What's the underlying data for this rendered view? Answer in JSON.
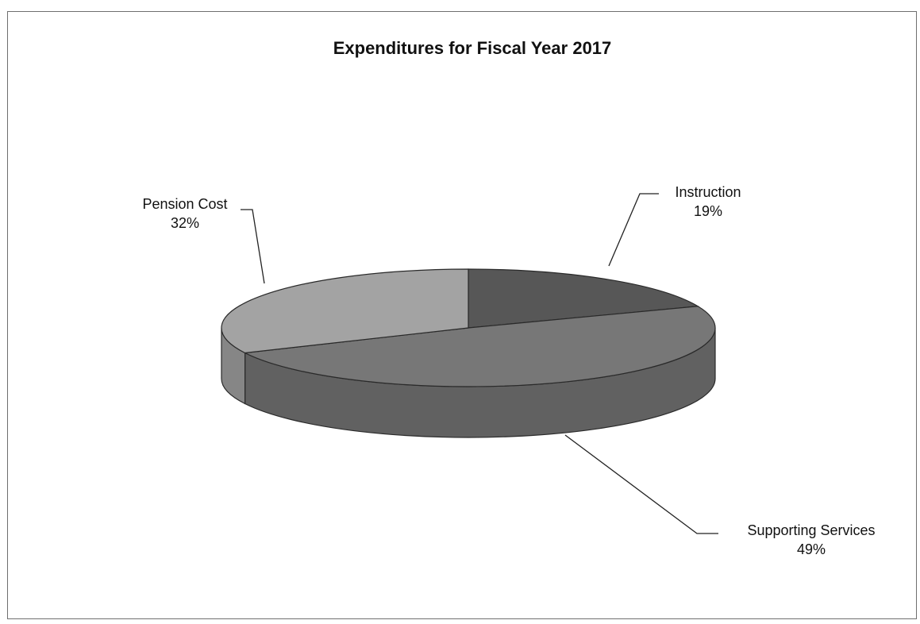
{
  "chart_data": {
    "type": "pie",
    "title": "Expenditures for Fiscal Year 2017",
    "three_d": true,
    "legend": "none",
    "slices": [
      {
        "label": "Instruction",
        "percent_label": "19%",
        "value": 19,
        "color": "#575757",
        "side_color": "#454545"
      },
      {
        "label": "Supporting Services",
        "percent_label": "49%",
        "value": 49,
        "color": "#777777",
        "side_color": "#616161"
      },
      {
        "label": "Pension Cost",
        "percent_label": "32%",
        "value": 32,
        "color": "#a3a3a3",
        "side_color": "#868686"
      }
    ]
  }
}
